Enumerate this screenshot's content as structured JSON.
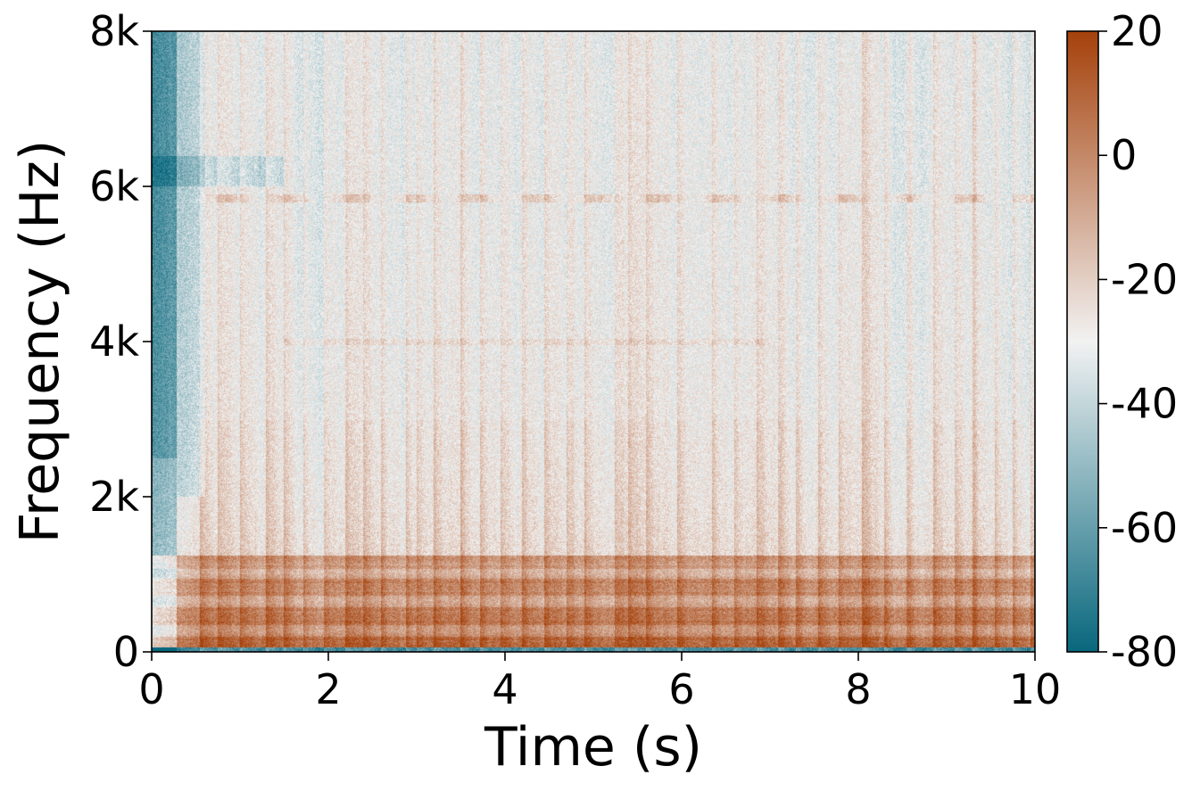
{
  "chart_data": {
    "type": "heatmap",
    "title": "",
    "xlabel": "Time (s)",
    "ylabel": "Frequency (Hz)",
    "xlim": [
      0,
      10
    ],
    "ylim": [
      0,
      8000
    ],
    "x_ticks": [
      0,
      2,
      4,
      6,
      8,
      10
    ],
    "x_tick_labels": [
      "0",
      "2",
      "4",
      "6",
      "8",
      "10"
    ],
    "y_ticks": [
      0,
      2000,
      4000,
      6000,
      8000
    ],
    "y_tick_labels": [
      "0",
      "2k",
      "4k",
      "6k",
      "8k"
    ],
    "colorbar": {
      "range": [
        -80,
        20
      ],
      "ticks": [
        -80,
        -60,
        -40,
        -20,
        0,
        20
      ],
      "tick_labels": [
        "-80",
        "-60",
        "-40",
        "-20",
        "0",
        "20"
      ],
      "colors": {
        "low": "#08677d",
        "mid": "#f2f2f2",
        "high": "#a5410b"
      }
    },
    "onset_times_s": [
      0.55,
      0.75,
      1.0,
      1.3,
      1.5,
      1.72,
      1.95,
      2.2,
      2.4,
      2.6,
      2.88,
      3.0,
      3.2,
      3.5,
      3.72,
      3.95,
      4.2,
      4.45,
      4.7,
      4.9,
      5.25,
      5.4,
      5.6,
      5.95,
      6.35,
      6.6,
      6.85,
      7.1,
      7.3,
      7.55,
      7.78,
      8.05,
      8.3,
      8.55,
      8.85,
      9.1,
      9.3,
      9.55,
      9.75,
      9.95
    ],
    "features": {
      "low_band_hz": [
        0,
        1200
      ],
      "harmonic_line_hz": 5850,
      "quiet_intro_s": [
        0,
        0.25
      ]
    }
  }
}
